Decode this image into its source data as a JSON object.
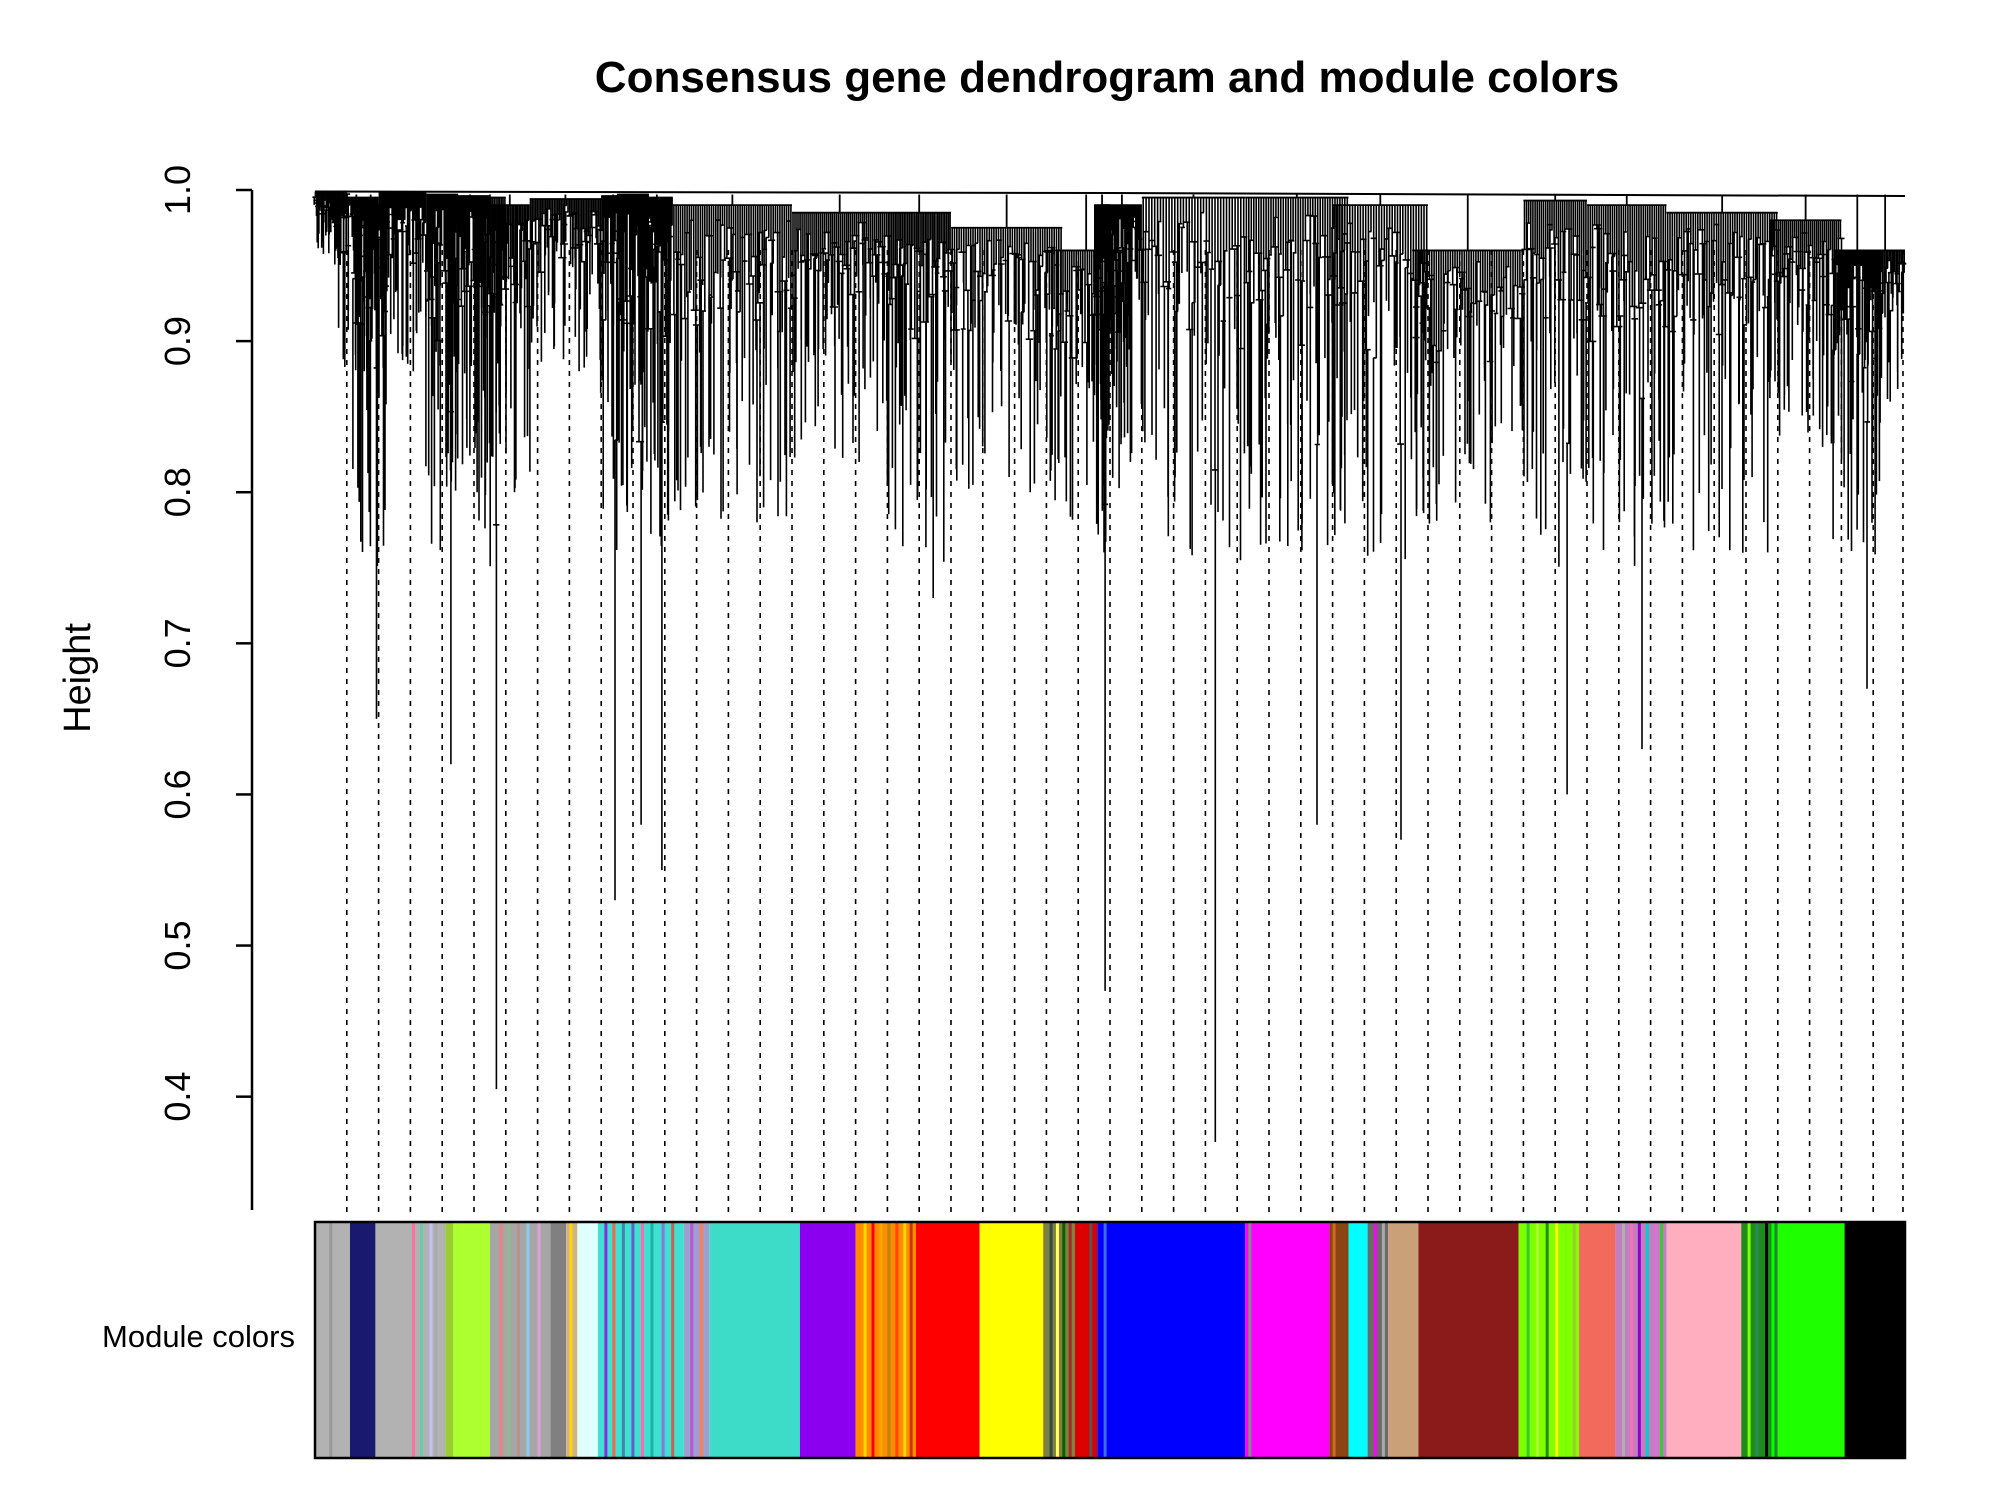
{
  "chart_data": {
    "type": "dendrogram",
    "title": "Consensus gene dendrogram and module colors",
    "ylabel": "Height",
    "xlabel": "",
    "ylim": [
      0.325,
      1.0
    ],
    "yticks": [
      0.4,
      0.5,
      0.6,
      0.7,
      0.8,
      0.9,
      1.0
    ],
    "ytick_labels": [
      "0.4",
      "0.5",
      "0.6",
      "0.7",
      "0.8",
      "0.9",
      "1.0"
    ],
    "color_row_label": "Module colors",
    "trunk_height": 0.997,
    "clusters": [
      {
        "start": 0.0,
        "end": 0.02,
        "top": 0.999,
        "min": 0.955,
        "density": 6
      },
      {
        "start": 0.012,
        "end": 0.04,
        "top": 0.995,
        "min": 0.88,
        "density": 5
      },
      {
        "start": 0.025,
        "end": 0.045,
        "top": 0.99,
        "min": 0.65,
        "density": 4
      },
      {
        "start": 0.04,
        "end": 0.07,
        "top": 0.998,
        "min": 0.88,
        "density": 5
      },
      {
        "start": 0.07,
        "end": 0.09,
        "top": 0.997,
        "min": 0.62,
        "density": 4
      },
      {
        "start": 0.085,
        "end": 0.11,
        "top": 0.996,
        "min": 0.8,
        "density": 5
      },
      {
        "start": 0.1,
        "end": 0.12,
        "top": 0.995,
        "min": 0.405,
        "density": 3
      },
      {
        "start": 0.11,
        "end": 0.135,
        "top": 0.99,
        "min": 0.8,
        "density": 4
      },
      {
        "start": 0.135,
        "end": 0.18,
        "top": 0.994,
        "min": 0.88,
        "density": 7
      },
      {
        "start": 0.18,
        "end": 0.195,
        "top": 0.996,
        "min": 0.53,
        "density": 3
      },
      {
        "start": 0.19,
        "end": 0.21,
        "top": 0.997,
        "min": 0.58,
        "density": 4
      },
      {
        "start": 0.205,
        "end": 0.225,
        "top": 0.995,
        "min": 0.55,
        "density": 4
      },
      {
        "start": 0.225,
        "end": 0.3,
        "top": 0.99,
        "min": 0.78,
        "density": 9
      },
      {
        "start": 0.3,
        "end": 0.36,
        "top": 0.985,
        "min": 0.82,
        "density": 8
      },
      {
        "start": 0.36,
        "end": 0.4,
        "top": 0.985,
        "min": 0.73,
        "density": 6
      },
      {
        "start": 0.4,
        "end": 0.47,
        "top": 0.975,
        "min": 0.8,
        "density": 8
      },
      {
        "start": 0.46,
        "end": 0.51,
        "top": 0.96,
        "min": 0.78,
        "density": 6
      },
      {
        "start": 0.51,
        "end": 0.49,
        "top": 0.995,
        "min": 0.83,
        "density": 0
      },
      {
        "start": 0.495,
        "end": 0.52,
        "top": 0.99,
        "min": 0.82,
        "density": 5
      },
      {
        "start": 0.49,
        "end": 0.5,
        "top": 0.99,
        "min": 0.47,
        "density": 2
      },
      {
        "start": 0.52,
        "end": 0.585,
        "top": 0.995,
        "min": 0.37,
        "density": 6
      },
      {
        "start": 0.585,
        "end": 0.65,
        "top": 0.995,
        "min": 0.58,
        "density": 7
      },
      {
        "start": 0.64,
        "end": 0.7,
        "top": 0.99,
        "min": 0.57,
        "density": 6
      },
      {
        "start": 0.69,
        "end": 0.76,
        "top": 0.96,
        "min": 0.78,
        "density": 8
      },
      {
        "start": 0.76,
        "end": 0.8,
        "top": 0.993,
        "min": 0.6,
        "density": 5
      },
      {
        "start": 0.8,
        "end": 0.85,
        "top": 0.99,
        "min": 0.63,
        "density": 6
      },
      {
        "start": 0.85,
        "end": 0.92,
        "top": 0.985,
        "min": 0.76,
        "density": 8
      },
      {
        "start": 0.915,
        "end": 0.96,
        "top": 0.98,
        "min": 0.83,
        "density": 6
      },
      {
        "start": 0.955,
        "end": 0.985,
        "top": 0.96,
        "min": 0.67,
        "density": 5
      },
      {
        "start": 0.975,
        "end": 1.0,
        "top": 0.96,
        "min": 0.86,
        "density": 4
      }
    ],
    "dashed_line_positions": [
      0.02,
      0.04,
      0.06,
      0.08,
      0.1,
      0.12,
      0.14,
      0.16,
      0.18,
      0.2,
      0.22,
      0.24,
      0.26,
      0.28,
      0.3,
      0.32,
      0.34,
      0.36,
      0.38,
      0.4,
      0.42,
      0.44,
      0.46,
      0.48,
      0.5,
      0.52,
      0.54,
      0.56,
      0.58,
      0.6,
      0.62,
      0.64,
      0.66,
      0.68,
      0.7,
      0.72,
      0.74,
      0.76,
      0.78,
      0.8,
      0.82,
      0.84,
      0.86,
      0.88,
      0.9,
      0.92,
      0.94,
      0.96,
      0.98,
      1.0
    ],
    "module_segments": [
      {
        "start": 0.0,
        "end": 0.022,
        "color": "#b2b2b2"
      },
      {
        "start": 0.022,
        "end": 0.038,
        "color": "#191970"
      },
      {
        "start": 0.038,
        "end": 0.082,
        "color": "#b2b2b2"
      },
      {
        "start": 0.082,
        "end": 0.087,
        "color": "#9acd32"
      },
      {
        "start": 0.087,
        "end": 0.11,
        "color": "#adff2f"
      },
      {
        "start": 0.11,
        "end": 0.148,
        "color": "#a6a6a6"
      },
      {
        "start": 0.148,
        "end": 0.158,
        "color": "#808080"
      },
      {
        "start": 0.158,
        "end": 0.165,
        "color": "#d2b48c"
      },
      {
        "start": 0.165,
        "end": 0.178,
        "color": "#e0ffff"
      },
      {
        "start": 0.178,
        "end": 0.232,
        "color": "#40e0d0"
      },
      {
        "start": 0.232,
        "end": 0.248,
        "color": "#9e9ecf"
      },
      {
        "start": 0.248,
        "end": 0.305,
        "color": "#3cdcc8"
      },
      {
        "start": 0.305,
        "end": 0.34,
        "color": "#8b00ee"
      },
      {
        "start": 0.34,
        "end": 0.378,
        "color": "#ff8c00"
      },
      {
        "start": 0.378,
        "end": 0.418,
        "color": "#ff0000"
      },
      {
        "start": 0.418,
        "end": 0.458,
        "color": "#ffff00"
      },
      {
        "start": 0.458,
        "end": 0.478,
        "color": "#808040"
      },
      {
        "start": 0.478,
        "end": 0.492,
        "color": "#dd0000"
      },
      {
        "start": 0.492,
        "end": 0.585,
        "color": "#0000ff"
      },
      {
        "start": 0.585,
        "end": 0.638,
        "color": "#ff00ff"
      },
      {
        "start": 0.638,
        "end": 0.65,
        "color": "#8b4513"
      },
      {
        "start": 0.65,
        "end": 0.662,
        "color": "#00ffff"
      },
      {
        "start": 0.662,
        "end": 0.675,
        "color": "#6b6b6b"
      },
      {
        "start": 0.675,
        "end": 0.694,
        "color": "#c9a077"
      },
      {
        "start": 0.694,
        "end": 0.757,
        "color": "#8b1a1a"
      },
      {
        "start": 0.757,
        "end": 0.795,
        "color": "#7fff00"
      },
      {
        "start": 0.795,
        "end": 0.818,
        "color": "#f26a5c"
      },
      {
        "start": 0.818,
        "end": 0.85,
        "color": "#c080c0"
      },
      {
        "start": 0.85,
        "end": 0.897,
        "color": "#ffaec0"
      },
      {
        "start": 0.897,
        "end": 0.92,
        "color": "#1c8c1c"
      },
      {
        "start": 0.92,
        "end": 0.962,
        "color": "#1eff00"
      },
      {
        "start": 0.962,
        "end": 1.0,
        "color": "#000000"
      }
    ],
    "module_stripes": [
      {
        "pos": 0.009,
        "color": "#999999"
      },
      {
        "pos": 0.061,
        "color": "#ff6fa0"
      },
      {
        "pos": 0.066,
        "color": "#66cdaa"
      },
      {
        "pos": 0.072,
        "color": "#c0c0ff"
      },
      {
        "pos": 0.075,
        "color": "#aaaaaa"
      },
      {
        "pos": 0.116,
        "color": "#f08080"
      },
      {
        "pos": 0.121,
        "color": "#8fbc8f"
      },
      {
        "pos": 0.127,
        "color": "#bc8f8f"
      },
      {
        "pos": 0.133,
        "color": "#87ceeb"
      },
      {
        "pos": 0.14,
        "color": "#dda0dd"
      },
      {
        "pos": 0.16,
        "color": "#ffd700"
      },
      {
        "pos": 0.182,
        "color": "#8a2be2"
      },
      {
        "pos": 0.187,
        "color": "#ff6347"
      },
      {
        "pos": 0.193,
        "color": "#4682b4"
      },
      {
        "pos": 0.199,
        "color": "#6a5acd"
      },
      {
        "pos": 0.205,
        "color": "#ff69b4"
      },
      {
        "pos": 0.211,
        "color": "#20b2aa"
      },
      {
        "pos": 0.218,
        "color": "#9370db"
      },
      {
        "pos": 0.224,
        "color": "#cd5c5c"
      },
      {
        "pos": 0.236,
        "color": "#ba55d3"
      },
      {
        "pos": 0.242,
        "color": "#ff7f50"
      },
      {
        "pos": 0.345,
        "color": "#ffd700"
      },
      {
        "pos": 0.35,
        "color": "#ff0000"
      },
      {
        "pos": 0.355,
        "color": "#ffa500"
      },
      {
        "pos": 0.36,
        "color": "#b8860b"
      },
      {
        "pos": 0.365,
        "color": "#ff4500"
      },
      {
        "pos": 0.37,
        "color": "#ffd700"
      },
      {
        "pos": 0.374,
        "color": "#cc3300"
      },
      {
        "pos": 0.462,
        "color": "#2f4f4f"
      },
      {
        "pos": 0.466,
        "color": "#ffff66"
      },
      {
        "pos": 0.47,
        "color": "#006400"
      },
      {
        "pos": 0.474,
        "color": "#a52a2a"
      },
      {
        "pos": 0.487,
        "color": "#555555"
      },
      {
        "pos": 0.496,
        "color": "#4169e1"
      },
      {
        "pos": 0.587,
        "color": "#888888"
      },
      {
        "pos": 0.64,
        "color": "#d2691e"
      },
      {
        "pos": 0.666,
        "color": "#ff00ff"
      },
      {
        "pos": 0.671,
        "color": "#a9a9a9"
      },
      {
        "pos": 0.762,
        "color": "#32cd32"
      },
      {
        "pos": 0.768,
        "color": "#adff2f"
      },
      {
        "pos": 0.774,
        "color": "#228b22"
      },
      {
        "pos": 0.78,
        "color": "#ffff00"
      },
      {
        "pos": 0.786,
        "color": "#7cfc00"
      },
      {
        "pos": 0.791,
        "color": "#9acd32"
      },
      {
        "pos": 0.822,
        "color": "#b0b0b0"
      },
      {
        "pos": 0.827,
        "color": "#ff6eb4"
      },
      {
        "pos": 0.832,
        "color": "#9400d3"
      },
      {
        "pos": 0.837,
        "color": "#00ced1"
      },
      {
        "pos": 0.842,
        "color": "#da70d6"
      },
      {
        "pos": 0.846,
        "color": "#32cd32"
      },
      {
        "pos": 0.901,
        "color": "#7fff00"
      },
      {
        "pos": 0.906,
        "color": "#2e8b57"
      },
      {
        "pos": 0.912,
        "color": "#000000"
      },
      {
        "pos": 0.916,
        "color": "#00ff00"
      }
    ]
  }
}
